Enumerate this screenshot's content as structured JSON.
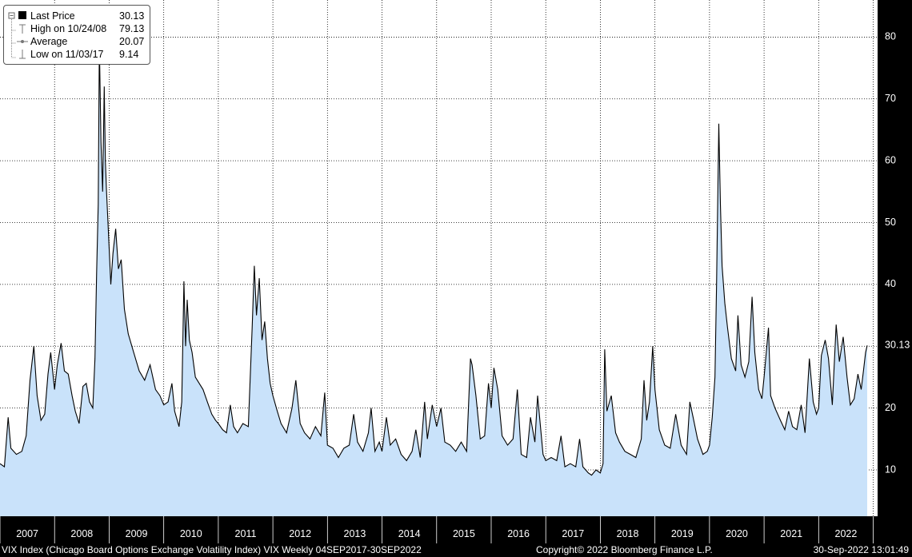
{
  "chart_data": {
    "type": "area",
    "title": "VIX Index (Chicago Board Options Exchange Volatility Index) VIX",
    "frequency": "Weekly",
    "xlabel": "",
    "ylabel": "",
    "x_ticks": [
      "2007",
      "2008",
      "2009",
      "2010",
      "2011",
      "2012",
      "2013",
      "2014",
      "2015",
      "2016",
      "2017",
      "2018",
      "2019",
      "2020",
      "2021",
      "2022"
    ],
    "y_ticks": [
      10,
      20,
      30,
      40,
      50,
      60,
      70,
      80
    ],
    "ylim": [
      2.5,
      86
    ],
    "grid": true,
    "legend_position": "top-left",
    "last_price_marker": "30.13",
    "series": [
      {
        "name": "VIX",
        "points": [
          [
            2007.0,
            11.0
          ],
          [
            2007.08,
            10.5
          ],
          [
            2007.15,
            18.5
          ],
          [
            2007.2,
            13.5
          ],
          [
            2007.3,
            12.5
          ],
          [
            2007.4,
            13.0
          ],
          [
            2007.48,
            15.5
          ],
          [
            2007.55,
            24.5
          ],
          [
            2007.62,
            30.0
          ],
          [
            2007.68,
            22.0
          ],
          [
            2007.75,
            18.0
          ],
          [
            2007.82,
            19.0
          ],
          [
            2007.88,
            25.5
          ],
          [
            2007.93,
            29.0
          ],
          [
            2008.0,
            23.0
          ],
          [
            2008.05,
            27.0
          ],
          [
            2008.12,
            30.5
          ],
          [
            2008.18,
            26.0
          ],
          [
            2008.25,
            25.5
          ],
          [
            2008.32,
            22.0
          ],
          [
            2008.38,
            19.5
          ],
          [
            2008.45,
            17.5
          ],
          [
            2008.52,
            23.5
          ],
          [
            2008.58,
            24.0
          ],
          [
            2008.64,
            21.0
          ],
          [
            2008.7,
            20.0
          ],
          [
            2008.74,
            28.0
          ],
          [
            2008.77,
            42.0
          ],
          [
            2008.8,
            53.0
          ],
          [
            2008.82,
            79.13
          ],
          [
            2008.85,
            63.0
          ],
          [
            2008.88,
            55.0
          ],
          [
            2008.91,
            72.0
          ],
          [
            2008.93,
            60.0
          ],
          [
            2008.95,
            55.5
          ],
          [
            2009.0,
            46.0
          ],
          [
            2009.03,
            40.0
          ],
          [
            2009.07,
            45.0
          ],
          [
            2009.12,
            49.0
          ],
          [
            2009.17,
            42.5
          ],
          [
            2009.22,
            44.0
          ],
          [
            2009.28,
            36.0
          ],
          [
            2009.35,
            32.0
          ],
          [
            2009.45,
            29.0
          ],
          [
            2009.55,
            26.0
          ],
          [
            2009.65,
            24.5
          ],
          [
            2009.75,
            27.0
          ],
          [
            2009.85,
            23.0
          ],
          [
            2009.93,
            22.0
          ],
          [
            2010.0,
            20.5
          ],
          [
            2010.08,
            21.0
          ],
          [
            2010.15,
            24.0
          ],
          [
            2010.2,
            19.5
          ],
          [
            2010.28,
            17.0
          ],
          [
            2010.33,
            21.0
          ],
          [
            2010.37,
            40.5
          ],
          [
            2010.4,
            30.0
          ],
          [
            2010.43,
            37.5
          ],
          [
            2010.47,
            31.0
          ],
          [
            2010.52,
            29.0
          ],
          [
            2010.58,
            25.0
          ],
          [
            2010.65,
            24.0
          ],
          [
            2010.72,
            23.0
          ],
          [
            2010.8,
            21.0
          ],
          [
            2010.88,
            19.0
          ],
          [
            2010.95,
            18.0
          ],
          [
            2011.0,
            17.5
          ],
          [
            2011.08,
            16.5
          ],
          [
            2011.15,
            16.0
          ],
          [
            2011.22,
            20.5
          ],
          [
            2011.28,
            17.0
          ],
          [
            2011.35,
            16.0
          ],
          [
            2011.45,
            17.5
          ],
          [
            2011.55,
            17.0
          ],
          [
            2011.62,
            33.0
          ],
          [
            2011.66,
            43.0
          ],
          [
            2011.7,
            35.0
          ],
          [
            2011.75,
            41.0
          ],
          [
            2011.8,
            31.0
          ],
          [
            2011.85,
            34.0
          ],
          [
            2011.9,
            28.0
          ],
          [
            2011.95,
            24.0
          ],
          [
            2012.0,
            22.0
          ],
          [
            2012.08,
            19.5
          ],
          [
            2012.15,
            17.5
          ],
          [
            2012.25,
            16.0
          ],
          [
            2012.35,
            20.0
          ],
          [
            2012.42,
            24.5
          ],
          [
            2012.5,
            17.5
          ],
          [
            2012.58,
            16.0
          ],
          [
            2012.68,
            15.0
          ],
          [
            2012.78,
            17.0
          ],
          [
            2012.88,
            15.5
          ],
          [
            2012.95,
            22.5
          ],
          [
            2013.0,
            14.0
          ],
          [
            2013.1,
            13.5
          ],
          [
            2013.2,
            12.0
          ],
          [
            2013.3,
            13.5
          ],
          [
            2013.4,
            14.0
          ],
          [
            2013.48,
            19.0
          ],
          [
            2013.55,
            14.5
          ],
          [
            2013.65,
            13.0
          ],
          [
            2013.75,
            16.0
          ],
          [
            2013.8,
            20.0
          ],
          [
            2013.87,
            13.0
          ],
          [
            2013.95,
            14.5
          ],
          [
            2014.0,
            13.0
          ],
          [
            2014.08,
            18.5
          ],
          [
            2014.15,
            14.0
          ],
          [
            2014.25,
            15.0
          ],
          [
            2014.35,
            12.5
          ],
          [
            2014.45,
            11.5
          ],
          [
            2014.55,
            13.0
          ],
          [
            2014.62,
            16.5
          ],
          [
            2014.7,
            12.0
          ],
          [
            2014.78,
            21.0
          ],
          [
            2014.83,
            15.0
          ],
          [
            2014.92,
            20.5
          ],
          [
            2015.0,
            17.0
          ],
          [
            2015.08,
            20.0
          ],
          [
            2015.15,
            14.5
          ],
          [
            2015.25,
            14.0
          ],
          [
            2015.35,
            13.0
          ],
          [
            2015.45,
            14.5
          ],
          [
            2015.55,
            13.0
          ],
          [
            2015.62,
            28.0
          ],
          [
            2015.65,
            27.0
          ],
          [
            2015.72,
            22.0
          ],
          [
            2015.8,
            15.0
          ],
          [
            2015.88,
            15.5
          ],
          [
            2015.95,
            24.0
          ],
          [
            2016.0,
            20.0
          ],
          [
            2016.05,
            26.5
          ],
          [
            2016.12,
            23.0
          ],
          [
            2016.2,
            15.5
          ],
          [
            2016.3,
            14.0
          ],
          [
            2016.4,
            15.0
          ],
          [
            2016.48,
            23.0
          ],
          [
            2016.55,
            12.5
          ],
          [
            2016.65,
            12.0
          ],
          [
            2016.72,
            18.5
          ],
          [
            2016.8,
            14.5
          ],
          [
            2016.85,
            22.0
          ],
          [
            2016.95,
            12.5
          ],
          [
            2017.0,
            11.5
          ],
          [
            2017.1,
            12.0
          ],
          [
            2017.2,
            11.5
          ],
          [
            2017.28,
            15.5
          ],
          [
            2017.35,
            10.5
          ],
          [
            2017.45,
            11.0
          ],
          [
            2017.55,
            10.5
          ],
          [
            2017.62,
            15.0
          ],
          [
            2017.68,
            10.5
          ],
          [
            2017.78,
            9.5
          ],
          [
            2017.84,
            9.14
          ],
          [
            2017.92,
            10.0
          ],
          [
            2018.0,
            9.5
          ],
          [
            2018.05,
            11.0
          ],
          [
            2018.08,
            29.5
          ],
          [
            2018.12,
            19.5
          ],
          [
            2018.2,
            22.0
          ],
          [
            2018.28,
            16.0
          ],
          [
            2018.35,
            14.5
          ],
          [
            2018.45,
            13.0
          ],
          [
            2018.55,
            12.5
          ],
          [
            2018.65,
            12.0
          ],
          [
            2018.75,
            15.0
          ],
          [
            2018.8,
            24.5
          ],
          [
            2018.85,
            18.0
          ],
          [
            2018.9,
            21.0
          ],
          [
            2018.96,
            30.0
          ],
          [
            2019.0,
            23.0
          ],
          [
            2019.08,
            16.5
          ],
          [
            2019.18,
            14.0
          ],
          [
            2019.28,
            13.5
          ],
          [
            2019.38,
            19.0
          ],
          [
            2019.48,
            14.0
          ],
          [
            2019.58,
            12.5
          ],
          [
            2019.64,
            21.0
          ],
          [
            2019.7,
            18.5
          ],
          [
            2019.78,
            15.0
          ],
          [
            2019.88,
            12.5
          ],
          [
            2019.96,
            13.0
          ],
          [
            2020.0,
            14.0
          ],
          [
            2020.05,
            18.5
          ],
          [
            2020.1,
            25.0
          ],
          [
            2020.13,
            40.0
          ],
          [
            2020.17,
            66.0
          ],
          [
            2020.2,
            53.0
          ],
          [
            2020.23,
            43.0
          ],
          [
            2020.28,
            37.0
          ],
          [
            2020.33,
            33.0
          ],
          [
            2020.4,
            28.0
          ],
          [
            2020.48,
            26.0
          ],
          [
            2020.52,
            35.0
          ],
          [
            2020.58,
            27.0
          ],
          [
            2020.65,
            25.0
          ],
          [
            2020.72,
            27.5
          ],
          [
            2020.78,
            38.0
          ],
          [
            2020.83,
            29.0
          ],
          [
            2020.9,
            23.0
          ],
          [
            2020.96,
            21.5
          ],
          [
            2021.0,
            25.0
          ],
          [
            2021.08,
            33.0
          ],
          [
            2021.12,
            22.0
          ],
          [
            2021.2,
            20.0
          ],
          [
            2021.3,
            18.0
          ],
          [
            2021.38,
            16.5
          ],
          [
            2021.45,
            19.5
          ],
          [
            2021.52,
            17.0
          ],
          [
            2021.6,
            16.5
          ],
          [
            2021.68,
            20.5
          ],
          [
            2021.75,
            16.0
          ],
          [
            2021.83,
            28.0
          ],
          [
            2021.9,
            21.0
          ],
          [
            2021.96,
            19.0
          ],
          [
            2022.0,
            20.0
          ],
          [
            2022.05,
            28.5
          ],
          [
            2022.12,
            31.0
          ],
          [
            2022.18,
            28.0
          ],
          [
            2022.25,
            20.5
          ],
          [
            2022.32,
            33.5
          ],
          [
            2022.38,
            27.5
          ],
          [
            2022.45,
            31.5
          ],
          [
            2022.52,
            25.0
          ],
          [
            2022.58,
            20.5
          ],
          [
            2022.65,
            21.5
          ],
          [
            2022.72,
            25.5
          ],
          [
            2022.78,
            23.0
          ],
          [
            2022.82,
            26.0
          ],
          [
            2022.86,
            29.0
          ],
          [
            2022.89,
            30.13
          ]
        ]
      }
    ]
  },
  "legend": {
    "items": [
      {
        "label": "Last Price",
        "value": "30.13"
      },
      {
        "label": "High on 10/24/08",
        "value": "79.13"
      },
      {
        "label": "Average",
        "value": "20.07"
      },
      {
        "label": "Low on 11/03/17",
        "value": "9.14"
      }
    ]
  },
  "footer": {
    "left": "VIX Index (Chicago Board Options Exchange Volatility Index) VIX  Weekly 04SEP2017-30SEP2022",
    "center": "Copyright© 2022 Bloomberg Finance L.P.",
    "right": "30-Sep-2022 13:01:49"
  },
  "colors": {
    "background": "#000000",
    "plot_background": "#ffffff",
    "area_fill": "#c9e2fa",
    "line": "#000000",
    "grid": "#000000",
    "text": "#ffffff"
  }
}
